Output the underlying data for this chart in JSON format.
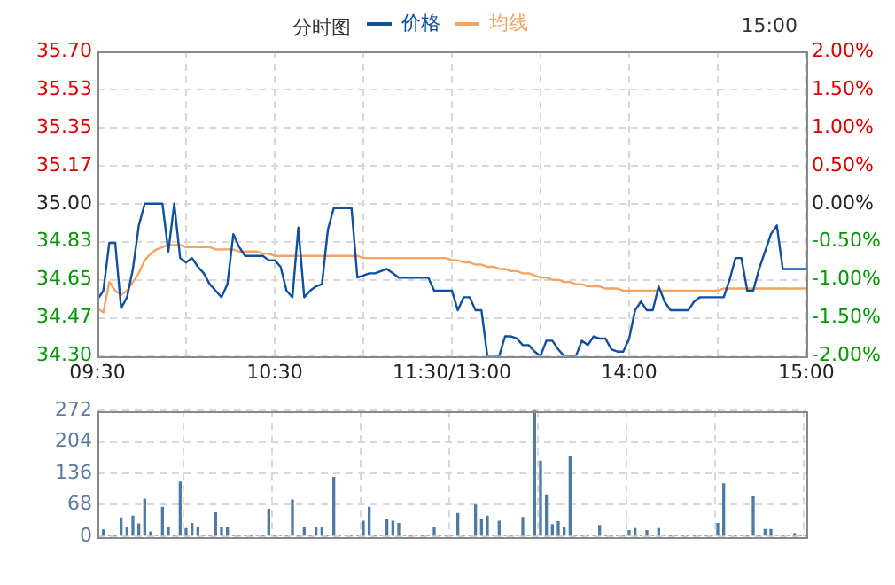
{
  "chart_data": [
    {
      "type": "line",
      "title": "分时图",
      "annotations": [
        "15:00"
      ],
      "legend": "top",
      "grid": true,
      "marker": "none",
      "line_style": "solid",
      "categories": [
        "09:30",
        null,
        null,
        null,
        null,
        null,
        null,
        null,
        null,
        null,
        null,
        null,
        null,
        null,
        null,
        null,
        null,
        null,
        null,
        null,
        null,
        null,
        null,
        null,
        null,
        null,
        null,
        null,
        null,
        null,
        "10:30",
        null,
        null,
        null,
        null,
        null,
        null,
        null,
        null,
        null,
        null,
        null,
        null,
        null,
        null,
        null,
        null,
        null,
        null,
        null,
        null,
        null,
        null,
        null,
        null,
        null,
        null,
        null,
        null,
        null,
        "11:30/13:00",
        null,
        null,
        null,
        null,
        null,
        null,
        null,
        null,
        null,
        null,
        null,
        null,
        null,
        null,
        null,
        null,
        null,
        null,
        null,
        null,
        null,
        null,
        null,
        null,
        null,
        null,
        null,
        null,
        null,
        "14:00",
        null,
        null,
        null,
        null,
        null,
        null,
        null,
        null,
        null,
        null,
        null,
        null,
        null,
        null,
        null,
        null,
        null,
        null,
        null,
        null,
        null,
        null,
        null,
        null,
        null,
        null,
        null,
        null,
        null,
        "15:00"
      ],
      "ylim": [
        34.3,
        35.7
      ],
      "yticks": [
        {
          "value": 34.3,
          "label": "34.30"
        },
        {
          "value": 34.475,
          "label": "34.47"
        },
        {
          "value": 34.65,
          "label": "34.65"
        },
        {
          "value": 34.825,
          "label": "34.83"
        },
        {
          "value": 35.0,
          "label": "35.00"
        },
        {
          "value": 35.175,
          "label": "35.17"
        },
        {
          "value": 35.35,
          "label": "35.35"
        },
        {
          "value": 35.525,
          "label": "35.53"
        },
        {
          "value": 35.7,
          "label": "35.70"
        }
      ],
      "y2lim": [
        -2,
        2
      ],
      "y2ticks": [
        {
          "value": -2,
          "label": "-2.00%"
        },
        {
          "value": -1.5,
          "label": "-1.50%"
        },
        {
          "value": -1,
          "label": "-1.00%"
        },
        {
          "value": -0.5,
          "label": "-0.50%"
        },
        {
          "value": 0,
          "label": "0.00%"
        },
        {
          "value": 0.5,
          "label": "0.50%"
        },
        {
          "value": 1,
          "label": "1.00%"
        },
        {
          "value": 1.5,
          "label": "1.50%"
        },
        {
          "value": 2,
          "label": "2.00%"
        }
      ],
      "series": [
        {
          "name": "价格",
          "color": "#0d4fa0",
          "values": [
            34.56,
            34.6,
            34.82,
            34.82,
            34.52,
            34.57,
            34.7,
            34.9,
            35.0,
            35.0,
            35.0,
            35.0,
            34.78,
            35.0,
            34.75,
            34.73,
            34.75,
            34.71,
            34.68,
            34.63,
            34.6,
            34.57,
            34.63,
            34.86,
            34.8,
            34.76,
            34.76,
            34.76,
            34.76,
            34.74,
            34.74,
            34.71,
            34.6,
            34.57,
            34.89,
            34.57,
            34.6,
            34.62,
            34.63,
            34.88,
            34.98,
            34.98,
            34.98,
            34.98,
            34.66,
            34.67,
            34.68,
            34.68,
            34.69,
            34.7,
            34.68,
            34.66,
            34.66,
            34.66,
            34.66,
            34.66,
            34.66,
            34.6,
            34.6,
            34.6,
            34.6,
            34.51,
            34.57,
            34.57,
            34.51,
            34.51,
            34.3,
            34.3,
            34.3,
            34.39,
            34.39,
            34.38,
            34.35,
            34.35,
            34.32,
            34.3,
            34.37,
            34.37,
            34.33,
            34.3,
            34.3,
            34.3,
            34.37,
            34.35,
            34.39,
            34.38,
            34.38,
            34.33,
            34.32,
            34.32,
            34.38,
            34.51,
            34.55,
            34.51,
            34.51,
            34.62,
            34.55,
            34.51,
            34.51,
            34.51,
            34.51,
            34.55,
            34.57,
            34.57,
            34.57,
            34.57,
            34.57,
            34.65,
            34.75,
            34.75,
            34.6,
            34.6,
            34.7,
            34.78,
            34.86,
            34.9,
            34.7,
            34.7,
            34.7,
            34.7,
            34.7
          ]
        },
        {
          "name": "均线",
          "color": "#f4a460",
          "values": [
            34.52,
            34.5,
            34.64,
            34.6,
            34.58,
            34.6,
            34.64,
            34.68,
            34.74,
            34.77,
            34.79,
            34.8,
            34.81,
            34.81,
            34.81,
            34.8,
            34.8,
            34.8,
            34.8,
            34.8,
            34.79,
            34.79,
            34.79,
            34.79,
            34.78,
            34.78,
            34.78,
            34.78,
            34.77,
            34.77,
            34.76,
            34.76,
            34.76,
            34.76,
            34.76,
            34.76,
            34.76,
            34.76,
            34.76,
            34.76,
            34.76,
            34.76,
            34.76,
            34.76,
            34.76,
            34.75,
            34.75,
            34.75,
            34.75,
            34.75,
            34.75,
            34.75,
            34.75,
            34.75,
            34.75,
            34.75,
            34.75,
            34.75,
            34.75,
            34.75,
            34.74,
            34.74,
            34.73,
            34.73,
            34.72,
            34.72,
            34.71,
            34.71,
            34.7,
            34.7,
            34.69,
            34.69,
            34.68,
            34.68,
            34.67,
            34.66,
            34.66,
            34.65,
            34.65,
            34.64,
            34.64,
            34.63,
            34.63,
            34.62,
            34.62,
            34.62,
            34.61,
            34.61,
            34.61,
            34.6,
            34.6,
            34.6,
            34.6,
            34.6,
            34.6,
            34.6,
            34.6,
            34.6,
            34.6,
            34.6,
            34.6,
            34.6,
            34.6,
            34.6,
            34.6,
            34.6,
            34.61,
            34.61,
            34.61,
            34.61,
            34.61,
            34.61,
            34.61,
            34.61,
            34.61,
            34.61,
            34.61,
            34.61,
            34.61,
            34.61,
            34.61
          ]
        }
      ]
    },
    {
      "type": "bar",
      "tick_labels": "y",
      "grid": true,
      "categories": [
        null,
        null,
        null,
        null,
        null,
        null,
        null,
        null,
        null,
        null,
        null,
        null,
        null,
        null,
        null,
        null,
        null,
        null,
        null,
        null,
        null,
        null,
        null,
        null,
        null,
        null,
        null,
        null,
        null,
        null,
        null,
        null,
        null,
        null,
        null,
        null,
        null,
        null,
        null,
        null,
        null,
        null,
        null,
        null,
        null,
        null,
        null,
        null,
        null,
        null,
        null,
        null,
        null,
        null,
        null,
        null,
        null,
        null,
        null,
        null,
        null,
        null,
        null,
        null,
        null,
        null,
        null,
        null,
        null,
        null,
        null,
        null,
        null,
        null,
        null,
        null,
        null,
        null,
        null,
        null,
        null,
        null,
        null,
        null,
        null,
        null,
        null,
        null,
        null,
        null,
        null,
        null,
        null,
        null,
        null,
        null,
        null,
        null,
        null,
        null,
        null,
        null,
        null,
        null,
        null,
        null,
        null,
        null,
        null,
        null,
        null,
        null,
        null,
        null,
        null,
        null,
        null,
        null,
        null,
        null,
        null
      ],
      "ylim": [
        0,
        272
      ],
      "yticks": [
        0,
        68,
        136,
        204,
        272
      ],
      "series": [
        {
          "color": "#4e7aa6",
          "values": [
            0,
            13,
            0,
            0,
            39,
            19,
            43,
            26,
            80,
            9,
            0,
            62,
            19,
            0,
            117,
            16,
            27,
            19,
            0,
            0,
            50,
            19,
            19,
            0,
            0,
            0,
            0,
            0,
            0,
            58,
            0,
            0,
            0,
            78,
            0,
            19,
            0,
            19,
            19,
            0,
            127,
            0,
            0,
            0,
            0,
            32,
            62,
            0,
            0,
            36,
            32,
            27,
            0,
            0,
            0,
            0,
            0,
            19,
            0,
            0,
            0,
            49,
            0,
            0,
            67,
            36,
            43,
            0,
            32,
            0,
            0,
            0,
            40,
            0,
            272,
            162,
            89,
            25,
            31,
            19,
            171,
            0,
            0,
            0,
            0,
            23,
            0,
            0,
            0,
            0,
            12,
            16,
            0,
            12,
            0,
            16,
            0,
            0,
            0,
            0,
            0,
            0,
            0,
            0,
            0,
            27,
            113,
            0,
            0,
            0,
            0,
            85,
            0,
            14,
            14,
            0,
            0,
            0,
            5,
            0,
            0
          ]
        }
      ]
    }
  ]
}
